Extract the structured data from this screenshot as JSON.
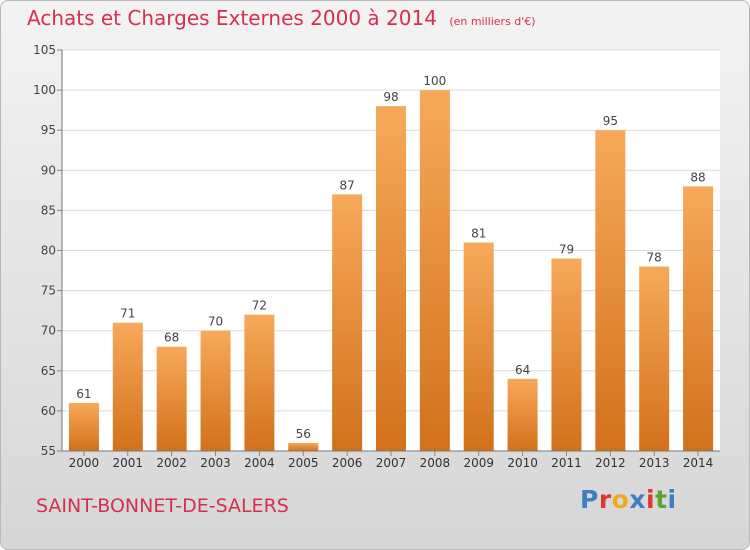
{
  "title": {
    "main": "Achats et Charges Externes 2000 à 2014",
    "unit": "(en milliers d'€)"
  },
  "footer": {
    "commune": "SAINT-BONNET-DE-SALERS",
    "brand": "Proxiti"
  },
  "colors": {
    "title": "#d4304f",
    "bar_top": "#f7a95a",
    "bar_bottom": "#d2711b",
    "brand_letters": [
      "#3c7fc2",
      "#e0362c",
      "#f1a81f",
      "#3c7fc2",
      "#e0362c",
      "#5aa52f",
      "#3c7fc2"
    ]
  },
  "chart_data": {
    "type": "bar",
    "categories": [
      "2000",
      "2001",
      "2002",
      "2003",
      "2004",
      "2005",
      "2006",
      "2007",
      "2008",
      "2009",
      "2010",
      "2011",
      "2012",
      "2013",
      "2014"
    ],
    "values": [
      61,
      71,
      68,
      70,
      72,
      56,
      87,
      98,
      100,
      81,
      64,
      79,
      95,
      78,
      88
    ],
    "ylim": [
      55,
      105
    ],
    "yticks": [
      55,
      60,
      65,
      70,
      75,
      80,
      85,
      90,
      95,
      100,
      105
    ],
    "grid": true,
    "title": "Achats et Charges Externes 2000 à 2014",
    "xlabel": "",
    "ylabel": ""
  }
}
